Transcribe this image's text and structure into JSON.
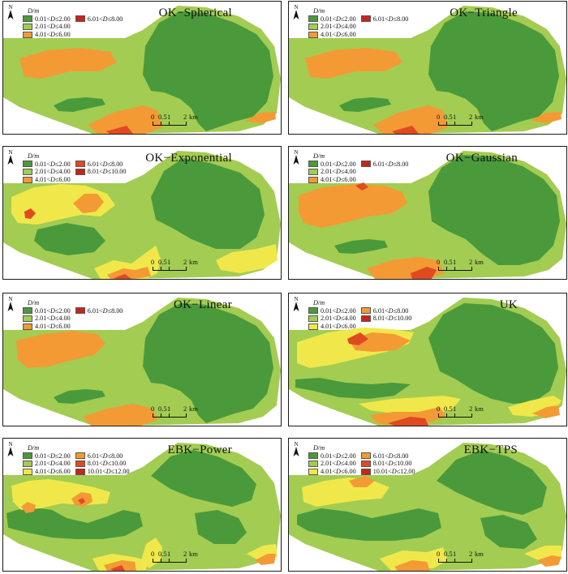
{
  "colors": {
    "c1": "#4a9a3c",
    "c2": "#a3cc52",
    "c3": "#f0e84a",
    "c4": "#f39a35",
    "c5": "#e04a20",
    "c6": "#c8241c"
  },
  "legend_unit": "D/m",
  "scale": {
    "t0": "0",
    "t1": "0.5",
    "t2": "1",
    "t3": "2",
    "unit": "km"
  },
  "panels": [
    {
      "title": "OK−Spherical",
      "legend": [
        "0.01<D≤2.00",
        "2.01<D≤4.00",
        "4.01<D≤6.00",
        "6.01<D≤8.00"
      ]
    },
    {
      "title": "OK−Triangle",
      "legend": [
        "0.01<D≤2.00",
        "2.01<D≤4.00",
        "4.01<D≤6.00",
        "6.01<D≤8.00"
      ]
    },
    {
      "title": "OK−Exponential",
      "legend": [
        "0.01<D≤2.00",
        "2.01<D≤4.00",
        "4.01<D≤6.00",
        "6.01<D≤8.00",
        "8.01<D≤10.00"
      ]
    },
    {
      "title": "OK−Gaussian",
      "legend": [
        "0.01<D≤2.00",
        "2.01<D≤4.00",
        "4.01<D≤6.00",
        "6.01<D≤8.00"
      ]
    },
    {
      "title": "OK−Linear",
      "legend": [
        "0.01<D≤2.00",
        "2.01<D≤4.00",
        "4.01<D≤6.00",
        "6.01<D≤8.00"
      ]
    },
    {
      "title": "UK",
      "legend": [
        "0.01<D≤2.00",
        "2.01<D≤4.00",
        "4.01<D≤6.00",
        "6.01<D≤8.00",
        "8.01<D≤10.00"
      ]
    },
    {
      "title": "EBK−Power",
      "legend": [
        "0.01<D≤2.00",
        "2.01<D≤4.00",
        "4.01<D≤6.00",
        "6.01<D≤8.00",
        "8.01<D≤10.00",
        "10.01<D≤12.00"
      ]
    },
    {
      "title": "EBK−TPS",
      "legend": [
        "0.01<D≤2.00",
        "2.01<D≤4.00",
        "4.01<D≤6.00",
        "6.01<D≤8.00",
        "8.01<D≤10.00",
        "10.01<D≤12.00"
      ]
    }
  ]
}
